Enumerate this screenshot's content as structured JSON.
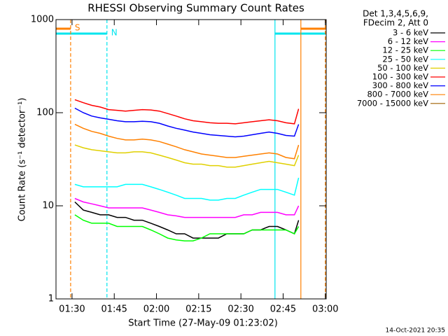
{
  "chart_data": {
    "type": "line",
    "title": "RHESSI Observing Summary Count Rates",
    "x_label": "Start Time (27-May-09 01:23:02)",
    "y_label": "Count Rate (s⁻¹ detector⁻¹)",
    "legend_title": [
      "Det 1,3,4,5,6,9,",
      "FDecim 2, Att 0"
    ],
    "footer": "14-Oct-2021 20:35",
    "log_y": true,
    "legend": "outside-right",
    "xlim": [
      84.3,
      180.3
    ],
    "ylim": [
      1,
      1000
    ],
    "xticks": [
      {
        "value": 90,
        "label": "01:30"
      },
      {
        "value": 105,
        "label": "01:45"
      },
      {
        "value": 120,
        "label": "02:00"
      },
      {
        "value": 135,
        "label": "02:15"
      },
      {
        "value": 150,
        "label": "02:30"
      },
      {
        "value": 165,
        "label": "02:45"
      },
      {
        "value": 180,
        "label": "03:00"
      }
    ],
    "yticks": [
      1,
      10,
      100,
      1000
    ],
    "x": [
      91,
      94,
      97,
      100,
      103,
      106,
      109,
      112,
      115,
      118,
      121,
      124,
      127,
      130,
      133,
      136,
      139,
      142,
      145,
      148,
      151,
      154,
      157,
      160,
      163,
      166,
      169,
      170.5
    ],
    "series": [
      {
        "name": "3 - 6 keV",
        "color": "#000000",
        "values": [
          11,
          9,
          8.5,
          8,
          8,
          7.5,
          7.5,
          7,
          7,
          6.5,
          6,
          5.5,
          5,
          5,
          4.5,
          4.5,
          4.5,
          4.5,
          5,
          5,
          5,
          5.5,
          5.5,
          6,
          6,
          5.5,
          5,
          7
        ]
      },
      {
        "name": "6 - 12 keV",
        "color": "#ff00ff",
        "values": [
          12,
          11,
          10.5,
          10,
          9.5,
          9.5,
          9.5,
          9.5,
          9.5,
          9,
          8.5,
          8,
          7.8,
          7.5,
          7.5,
          7.5,
          7.5,
          7.5,
          7.5,
          7.5,
          8,
          8,
          8.5,
          8.5,
          8.5,
          8,
          8,
          10
        ]
      },
      {
        "name": "12 - 25 keV",
        "color": "#00ff00",
        "values": [
          8,
          7,
          6.5,
          6.5,
          6.5,
          6,
          6,
          6,
          6,
          5.5,
          5,
          4.5,
          4.3,
          4.2,
          4.2,
          4.5,
          5,
          5,
          5,
          5,
          5,
          5.5,
          5.5,
          5.5,
          5.5,
          5.5,
          5,
          6
        ]
      },
      {
        "name": "25 - 50 keV",
        "color": "#00ffff",
        "values": [
          17,
          16,
          16,
          16,
          16,
          16,
          17,
          17,
          17,
          16,
          15,
          14,
          13,
          12,
          12,
          12,
          11.5,
          11.5,
          12,
          12,
          13,
          14,
          15,
          15,
          15,
          14,
          13,
          20
        ]
      },
      {
        "name": "50 - 100 keV",
        "color": "#e0d000",
        "values": [
          45,
          42,
          40,
          39,
          38,
          37,
          37,
          38,
          38,
          37,
          35,
          33,
          31,
          29,
          28,
          28,
          27,
          27,
          26,
          26,
          27,
          28,
          29,
          30,
          29,
          28,
          27,
          35
        ]
      },
      {
        "name": "100 - 300 keV",
        "color": "#ff0000",
        "values": [
          138,
          128,
          120,
          115,
          108,
          106,
          104,
          106,
          108,
          107,
          104,
          98,
          92,
          86,
          82,
          80,
          78,
          77,
          77,
          76,
          78,
          80,
          82,
          84,
          82,
          78,
          76,
          110
        ]
      },
      {
        "name": "300 - 800 keV",
        "color": "#0000ff",
        "values": [
          112,
          100,
          92,
          88,
          85,
          82,
          80,
          80,
          81,
          80,
          77,
          72,
          68,
          65,
          62,
          60,
          58,
          57,
          56,
          55,
          56,
          58,
          60,
          62,
          60,
          57,
          56,
          75
        ]
      },
      {
        "name": "800 - 7000 keV",
        "color": "#ff8000",
        "values": [
          75,
          68,
          63,
          60,
          56,
          53,
          51,
          51,
          52,
          51,
          49,
          46,
          43,
          40,
          38,
          36,
          35,
          34,
          33,
          33,
          34,
          35,
          36,
          37,
          36,
          33,
          32,
          45
        ]
      },
      {
        "name": "7000 - 15000 keV",
        "color": "#a06000",
        "values": [
          null,
          null,
          null,
          null,
          null,
          null,
          null,
          null,
          null,
          null,
          null,
          null,
          null,
          null,
          null,
          null,
          null,
          null,
          null,
          null,
          null,
          null,
          null,
          null,
          null,
          null,
          null,
          null
        ]
      }
    ],
    "events": [
      {
        "label": "S",
        "x": 89.5,
        "color": "#ff8000",
        "dashed": true
      },
      {
        "label": "N",
        "x": 102.4,
        "color": "#00e5ee",
        "dashed": true
      },
      {
        "x": 162.1,
        "color": "#00e5ee",
        "dashed": false
      },
      {
        "x": 171.3,
        "color": "#ff8000",
        "dashed": false
      },
      {
        "x": 180,
        "color": "#ff8000",
        "dashed": true
      }
    ],
    "flag_bars": [
      {
        "color": "#ff8000",
        "spans": [
          [
            84.3,
            89.5
          ],
          [
            171.3,
            180.3
          ]
        ]
      },
      {
        "color": "#00e5ee",
        "spans": [
          [
            84.3,
            102.4
          ],
          [
            162.1,
            180.3
          ]
        ]
      }
    ]
  }
}
